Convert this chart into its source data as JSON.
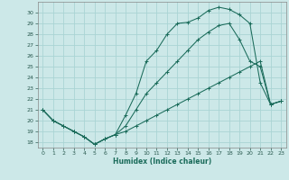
{
  "xlabel": "Humidex (Indice chaleur)",
  "bg_color": "#cce8e8",
  "grid_color": "#aad4d4",
  "line_color": "#1a6b5a",
  "xlim": [
    -0.5,
    23.5
  ],
  "ylim": [
    17.5,
    31.0
  ],
  "xticks": [
    0,
    1,
    2,
    3,
    4,
    5,
    6,
    7,
    8,
    9,
    10,
    11,
    12,
    13,
    14,
    15,
    16,
    17,
    18,
    19,
    20,
    21,
    22,
    23
  ],
  "yticks": [
    18,
    19,
    20,
    21,
    22,
    23,
    24,
    25,
    26,
    27,
    28,
    29,
    30
  ],
  "line1_x": [
    0,
    1,
    2,
    3,
    4,
    5,
    6,
    7,
    8,
    9,
    10,
    11,
    12,
    13,
    14,
    15,
    16,
    17,
    18,
    19,
    20,
    21,
    22,
    23
  ],
  "line1_y": [
    21.0,
    20.0,
    19.5,
    19.0,
    18.5,
    17.8,
    18.3,
    18.7,
    20.5,
    22.5,
    25.5,
    26.5,
    28.0,
    29.0,
    29.1,
    29.5,
    30.2,
    30.5,
    30.3,
    29.8,
    29.0,
    23.5,
    21.5,
    21.8
  ],
  "line2_x": [
    0,
    1,
    2,
    3,
    4,
    5,
    6,
    7,
    8,
    9,
    10,
    11,
    12,
    13,
    14,
    15,
    16,
    17,
    18,
    19,
    20,
    21,
    22,
    23
  ],
  "line2_y": [
    21.0,
    20.0,
    19.5,
    19.0,
    18.5,
    17.8,
    18.3,
    18.7,
    19.5,
    21.0,
    22.5,
    23.5,
    24.5,
    25.5,
    26.5,
    27.5,
    28.2,
    28.8,
    29.0,
    27.5,
    25.5,
    25.0,
    21.5,
    21.8
  ],
  "line3_x": [
    0,
    1,
    2,
    3,
    4,
    5,
    6,
    7,
    8,
    9,
    10,
    11,
    12,
    13,
    14,
    15,
    16,
    17,
    18,
    19,
    20,
    21,
    22,
    23
  ],
  "line3_y": [
    21.0,
    20.0,
    19.5,
    19.0,
    18.5,
    17.8,
    18.3,
    18.7,
    19.0,
    19.5,
    20.0,
    20.5,
    21.0,
    21.5,
    22.0,
    22.5,
    23.0,
    23.5,
    24.0,
    24.5,
    25.0,
    25.5,
    21.5,
    21.8
  ]
}
